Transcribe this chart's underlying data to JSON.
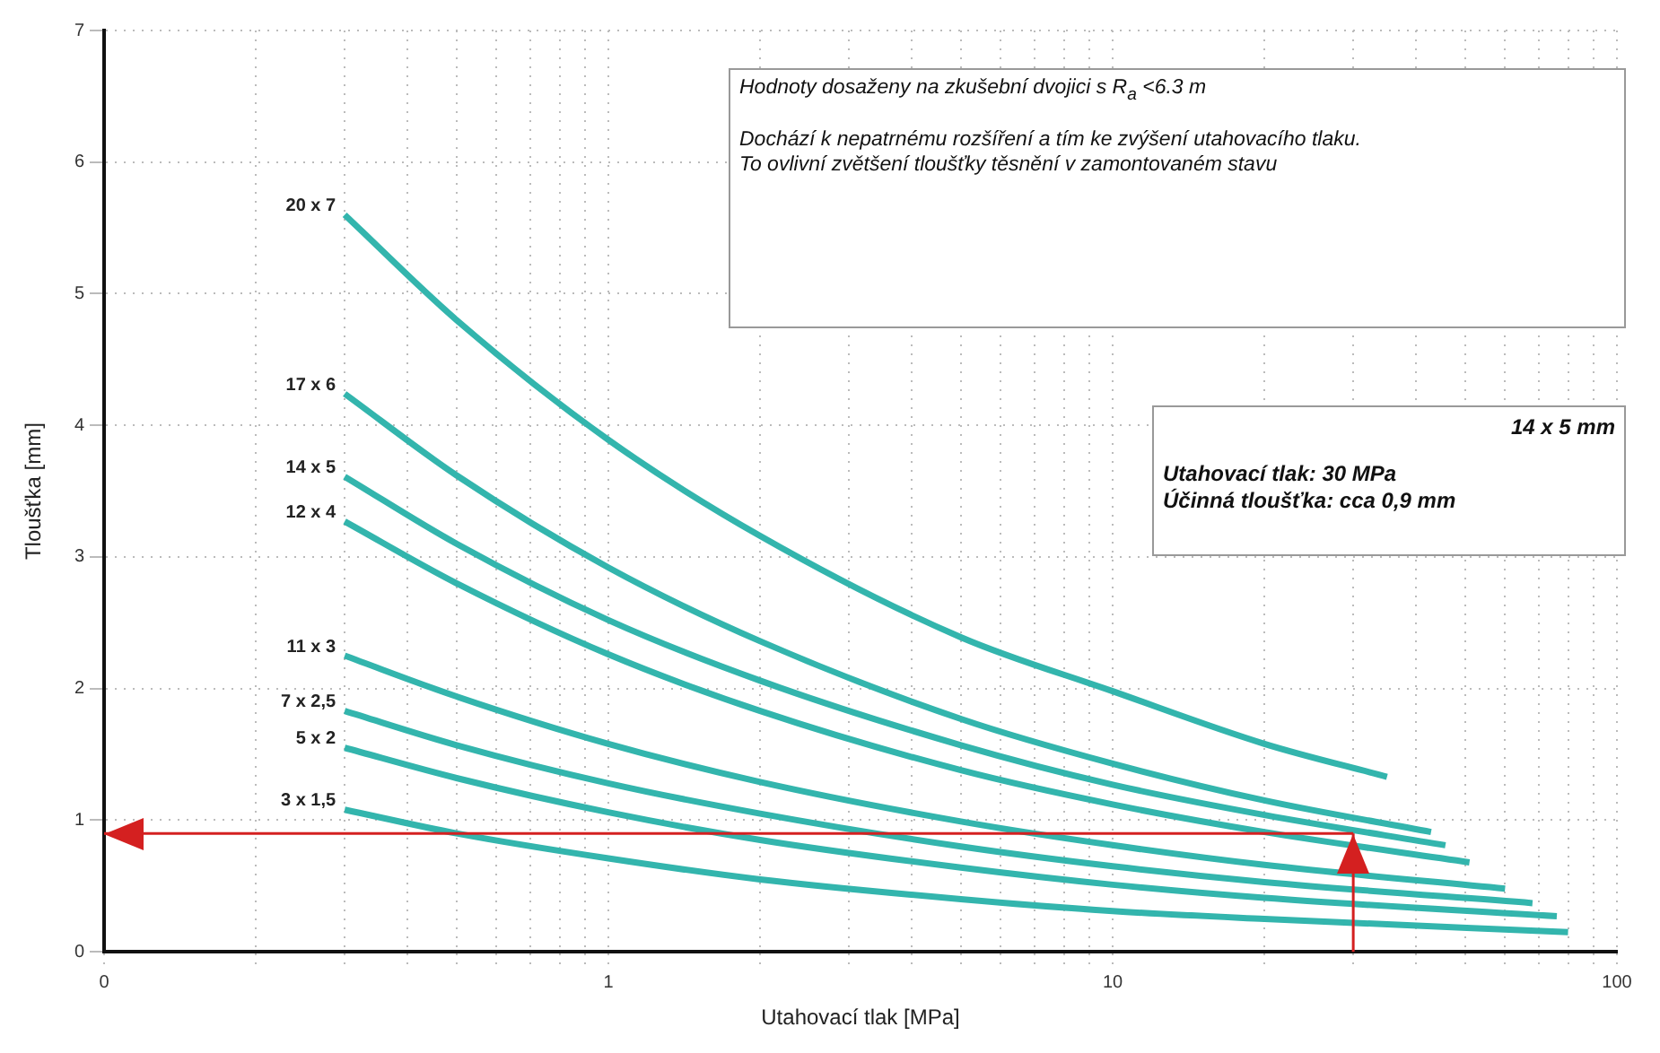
{
  "chart_data": {
    "type": "line",
    "xlabel": "Utahovací tlak [MPa]",
    "ylabel": "Tloušťka [mm]",
    "log": "x",
    "grid": true,
    "marker": "none",
    "line_style": "solid",
    "legend": false,
    "xlim": [
      0.1,
      100
    ],
    "ylim": [
      0,
      7
    ],
    "xticks": [
      {
        "value": 0.1,
        "label": "0"
      },
      {
        "value": 0.2,
        "label": null
      },
      {
        "value": 0.3,
        "label": null
      },
      {
        "value": 0.4,
        "label": null
      },
      {
        "value": 0.5,
        "label": null
      },
      {
        "value": 0.6,
        "label": null
      },
      {
        "value": 0.7,
        "label": null
      },
      {
        "value": 0.8,
        "label": null
      },
      {
        "value": 0.9,
        "label": null
      },
      1,
      {
        "value": 2,
        "label": null
      },
      {
        "value": 3,
        "label": null
      },
      {
        "value": 4,
        "label": null
      },
      {
        "value": 5,
        "label": null
      },
      {
        "value": 6,
        "label": null
      },
      {
        "value": 7,
        "label": null
      },
      {
        "value": 8,
        "label": null
      },
      {
        "value": 9,
        "label": null
      },
      10,
      {
        "value": 20,
        "label": null
      },
      {
        "value": 30,
        "label": null
      },
      {
        "value": 40,
        "label": null
      },
      {
        "value": 50,
        "label": null
      },
      {
        "value": 60,
        "label": null
      },
      {
        "value": 70,
        "label": null
      },
      {
        "value": 80,
        "label": null
      },
      {
        "value": 90,
        "label": null
      },
      100
    ],
    "yticks": [
      0,
      1,
      2,
      3,
      4,
      5,
      6,
      7
    ],
    "series": [
      {
        "name": "20 x 7",
        "color": "#33b5ad",
        "x": [
          0.3,
          0.5,
          1,
          2,
          5,
          10,
          20,
          35
        ],
        "values": [
          5.6,
          4.8,
          3.89,
          3.16,
          2.39,
          1.98,
          1.58,
          1.33
        ]
      },
      {
        "name": "17 x 6",
        "color": "#33b5ad",
        "x": [
          0.3,
          0.5,
          1,
          2,
          5,
          10,
          20,
          42.8
        ],
        "values": [
          4.24,
          3.62,
          2.92,
          2.36,
          1.77,
          1.43,
          1.15,
          0.91
        ]
      },
      {
        "name": "14 x 5",
        "color": "#33b5ad",
        "x": [
          0.3,
          0.5,
          1,
          2,
          5,
          10,
          20,
          45.7
        ],
        "values": [
          3.61,
          3.1,
          2.52,
          2.06,
          1.57,
          1.27,
          1.04,
          0.81
        ]
      },
      {
        "name": "12 x 4",
        "color": "#33b5ad",
        "x": [
          0.3,
          0.5,
          1,
          2,
          5,
          10,
          20,
          51
        ],
        "values": [
          3.27,
          2.8,
          2.26,
          1.83,
          1.38,
          1.12,
          0.91,
          0.68
        ]
      },
      {
        "name": "11 x 3",
        "color": "#33b5ad",
        "x": [
          0.3,
          0.5,
          1,
          2,
          5,
          10,
          20,
          60
        ],
        "values": [
          2.25,
          1.94,
          1.58,
          1.29,
          0.99,
          0.81,
          0.66,
          0.48
        ]
      },
      {
        "name": "7 x 2,5",
        "color": "#33b5ad",
        "x": [
          0.3,
          0.5,
          1,
          2,
          5,
          10,
          20,
          68
        ],
        "values": [
          1.83,
          1.57,
          1.28,
          1.05,
          0.8,
          0.65,
          0.53,
          0.37
        ]
      },
      {
        "name": "5 x 2",
        "color": "#33b5ad",
        "x": [
          0.3,
          0.5,
          1,
          2,
          5,
          10,
          20,
          76
        ],
        "values": [
          1.55,
          1.32,
          1.06,
          0.85,
          0.64,
          0.51,
          0.41,
          0.27
        ]
      },
      {
        "name": "3 x 1,5",
        "color": "#33b5ad",
        "x": [
          0.3,
          0.5,
          1,
          2,
          5,
          10,
          20,
          80
        ],
        "values": [
          1.08,
          0.9,
          0.71,
          0.55,
          0.4,
          0.31,
          0.25,
          0.15
        ]
      }
    ],
    "ref_lines": [
      {
        "axis": "x",
        "value": 30,
        "color": "#d42020"
      },
      {
        "axis": "y",
        "value": 0.9,
        "color": "#d42020"
      }
    ],
    "annotations": [
      "Hodnoty dosaženy na zkušební dvojici s R$_{a}$ <6.3 m",
      "Dochází k nepatrnému rozšíření a tím ke zvýšení utahovacího tlaku.",
      "To ovlivní zvětšení tloušťky těsnění v zamontovaném stavu",
      "14 x 5 mm",
      "Utahovací tlak: 30 MPa",
      "Účinná tloušťka: cca 0,9 mm"
    ]
  }
}
